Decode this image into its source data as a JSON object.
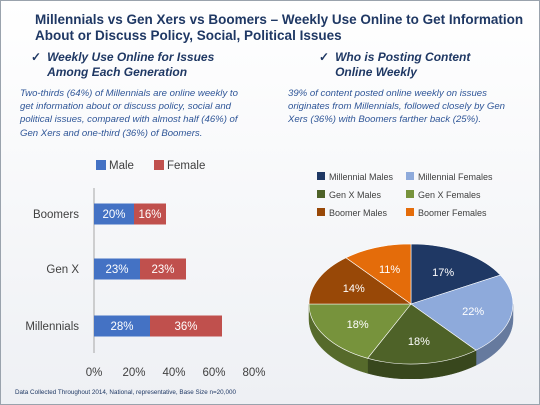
{
  "slide": {
    "title_line1": "Millennials vs Gen Xers vs Boomers – Weekly Use Online to Get Information",
    "title_line2": "About or Discuss Policy, Social, Political Issues",
    "left_heading_line1": "Weekly Use Online for Issues",
    "left_heading_line2": "Among Each Generation",
    "left_body": "Two-thirds (64%) of Millennials are online weekly to get information about or discuss policy, social and political issues, compared with almost half (46%) of Gen Xers and one-third (36%) of Boomers.",
    "right_heading_line1": "Who is Posting Content",
    "right_heading_line2": "Online Weekly",
    "right_body": "39% of content posted online weekly on issues originates from Millennials, followed closely by Gen Xers (36%) with Boomers farther back (25%).",
    "check_icon": "checkmark-icon",
    "footer": "Data Collected Throughout 2014, National, representative, Base Size n=20,000"
  },
  "colors": {
    "title": "#1f3864",
    "body": "#2e5597",
    "male": "#4472c4",
    "female": "#c0504d"
  },
  "chart_data": [
    {
      "type": "bar",
      "orientation": "horizontal",
      "stacked": true,
      "categories": [
        "Boomers",
        "Gen X",
        "Millennials"
      ],
      "series": [
        {
          "name": "Male",
          "color": "#4472c4",
          "values": [
            20,
            23,
            28
          ],
          "labels": [
            "20%",
            "23%",
            "28%"
          ]
        },
        {
          "name": "Female",
          "color": "#c0504d",
          "values": [
            16,
            23,
            36
          ],
          "labels": [
            "16%",
            "23%",
            "36%"
          ]
        }
      ],
      "xlim": [
        0,
        80
      ],
      "xticks": [
        "0%",
        "20%",
        "40%",
        "60%",
        "80%"
      ],
      "legend": "top",
      "grid": false
    },
    {
      "type": "pie",
      "style": "3d",
      "legend": "top",
      "slices": [
        {
          "name": "Millennial Males",
          "value": 17,
          "label": "17%",
          "color": "#1f3864"
        },
        {
          "name": "Millennial Females",
          "value": 22,
          "label": "22%",
          "color": "#8eaadb"
        },
        {
          "name": "Gen X Males",
          "value": 18,
          "label": "18%",
          "color": "#4e6228"
        },
        {
          "name": "Gen X Females",
          "value": 18,
          "label": "18%",
          "color": "#77933c"
        },
        {
          "name": "Boomer Males",
          "value": 14,
          "label": "14%",
          "color": "#984807"
        },
        {
          "name": "Boomer Females",
          "value": 11,
          "label": "11%",
          "color": "#e46c0a"
        }
      ]
    }
  ]
}
